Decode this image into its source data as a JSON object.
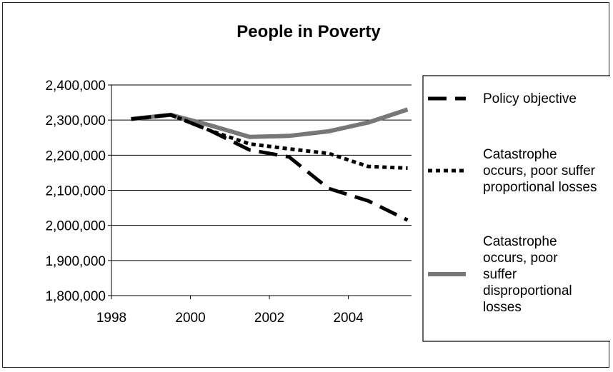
{
  "chart_data": {
    "type": "line",
    "title": "People in Poverty",
    "xlabel": "",
    "ylabel": "",
    "x": [
      1998.5,
      1999.5,
      2000.5,
      2001.5,
      2002.5,
      2003.5,
      2004.5,
      2005.5
    ],
    "xlim": [
      1998,
      2005.6
    ],
    "ylim": [
      1800000,
      2400000
    ],
    "x_ticks": [
      1998,
      2000,
      2002,
      2004
    ],
    "x_tick_labels": [
      "1998",
      "2000",
      "2002",
      "2004"
    ],
    "y_ticks": [
      1800000,
      1900000,
      2000000,
      2100000,
      2200000,
      2300000,
      2400000
    ],
    "y_tick_labels": [
      "1,800,000",
      "1,900,000",
      "2,000,000",
      "2,100,000",
      "2,200,000",
      "2,300,000",
      "2,400,000"
    ],
    "grid": true,
    "legend_position": "right",
    "series": [
      {
        "name": "Policy objective",
        "style": "dashed",
        "color": "#000000",
        "values": [
          2303000,
          2315000,
          2270000,
          2215000,
          2195000,
          2105000,
          2070000,
          2015000
        ]
      },
      {
        "name": "Catastrophe occurs, poor suffer proportional losses",
        "style": "dotted",
        "color": "#000000",
        "values": [
          2303000,
          2315000,
          2270000,
          2232000,
          2218000,
          2205000,
          2168000,
          2163000
        ]
      },
      {
        "name": "Catastrophe occurs, poor suffer disproportional losses",
        "style": "solid",
        "color": "#777777",
        "values": [
          2303000,
          2315000,
          2285000,
          2252000,
          2255000,
          2268000,
          2293000,
          2330000
        ]
      }
    ],
    "legend_lines": [
      [
        "Policy objective"
      ],
      [
        "Catastrophe",
        "occurs, poor suffer",
        "proportional losses"
      ],
      [
        "Catastrophe",
        "occurs, poor",
        "suffer",
        "disproportional",
        "losses"
      ]
    ]
  }
}
